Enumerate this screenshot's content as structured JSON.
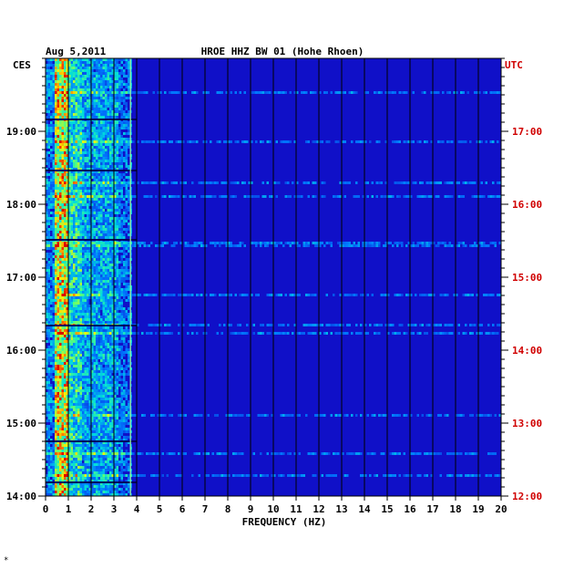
{
  "chart_data": {
    "type": "heatmap",
    "date": "Aug 5,2011",
    "title": "HROE HHZ BW 01 (Hohe Rhoen)",
    "xlabel": "FREQUENCY (HZ)",
    "x_ticks": [
      "0",
      "1",
      "2",
      "3",
      "4",
      "5",
      "6",
      "7",
      "8",
      "9",
      "10",
      "11",
      "12",
      "13",
      "14",
      "15",
      "16",
      "17",
      "18",
      "19",
      "20"
    ],
    "xlim": [
      0,
      20
    ],
    "left_axis_label": "CES",
    "right_axis_label": "UTC",
    "left_ticks": [
      "19:00",
      "18:00",
      "17:00",
      "16:00",
      "15:00",
      "14:00"
    ],
    "right_ticks": [
      "17:00",
      "16:00",
      "15:00",
      "14:00",
      "13:00",
      "12:00"
    ],
    "colors": {
      "background": "#1010c8",
      "grid": "#000000",
      "right_axis": "#d00000",
      "text": "#000000"
    },
    "grid_vertical": true,
    "footer_mark": "*"
  }
}
